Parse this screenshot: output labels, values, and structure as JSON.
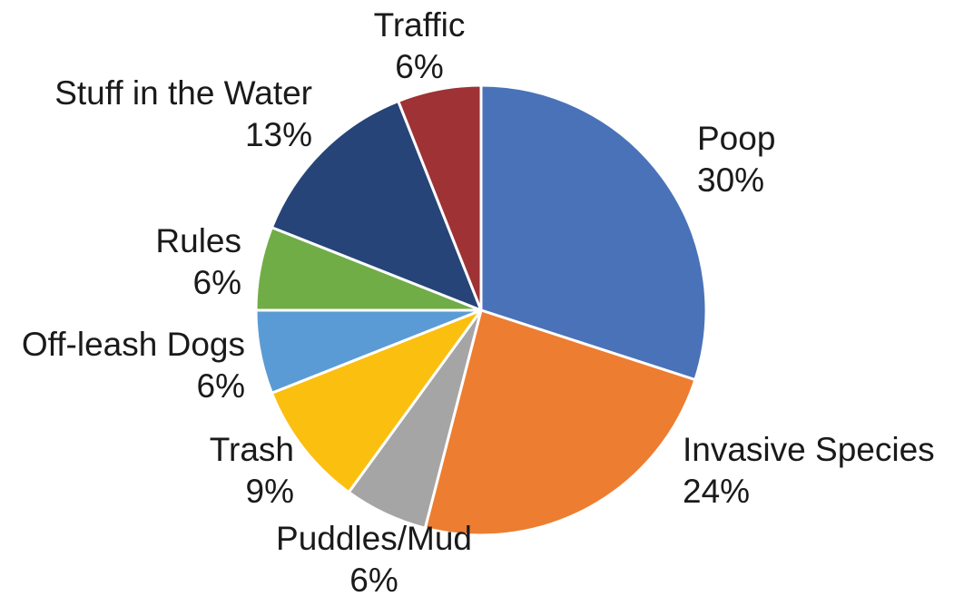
{
  "chart_data": {
    "type": "pie",
    "title": "",
    "start_angle_deg": 0,
    "direction": "clockwise",
    "slices": [
      {
        "label": "Poop",
        "value": 30,
        "value_label": "30%",
        "color": "#4A72B8"
      },
      {
        "label": "Invasive Species",
        "value": 24,
        "value_label": "24%",
        "color": "#ED7D31"
      },
      {
        "label": "Puddles/Mud",
        "value": 6,
        "value_label": "6%",
        "color": "#A5A5A5"
      },
      {
        "label": "Trash",
        "value": 9,
        "value_label": "9%",
        "color": "#FBBF10"
      },
      {
        "label": "Off-leash Dogs",
        "value": 6,
        "value_label": "6%",
        "color": "#5B9BD5"
      },
      {
        "label": "Rules",
        "value": 6,
        "value_label": "6%",
        "color": "#70AD47"
      },
      {
        "label": "Stuff in the Water",
        "value": 13,
        "value_label": "13%",
        "color": "#264478"
      },
      {
        "label": "Traffic",
        "value": 6,
        "value_label": "6%",
        "color": "#9E3235"
      }
    ]
  }
}
